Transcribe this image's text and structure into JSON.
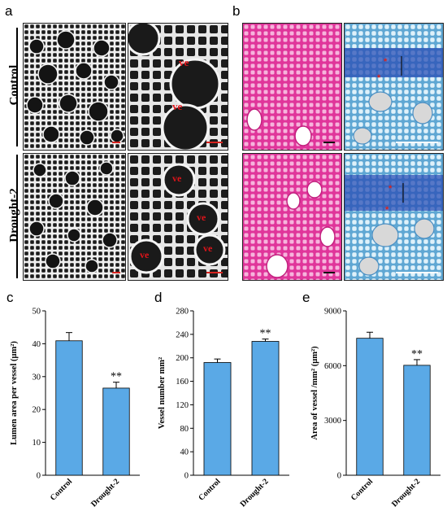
{
  "panel_letters": [
    "a",
    "b",
    "c",
    "d",
    "e"
  ],
  "rows": {
    "control_label": "Control",
    "drought_label": "Drought-2"
  },
  "vessel_label": "ve",
  "colors": {
    "sem_bg": "#1e1e1e",
    "sem_wall": "#e8e8e8",
    "safranin_bg": "#e0359a",
    "safranin_cell": "#f6b4dc",
    "astra_blue": "#9fd2ea",
    "astra_dark": "#2a4fb5",
    "bar": "#5aa9e6",
    "scale_red": "#d8231e",
    "scale_white": "#ffffff",
    "vessel_text": "#e0141a"
  },
  "chart_data": [
    {
      "type": "bar",
      "categories": [
        "Control",
        "Drought-2"
      ],
      "values": [
        40.9,
        26.5
      ],
      "errors": [
        2.5,
        1.8
      ],
      "significance": [
        "",
        "**"
      ],
      "ylabel": "Lumen area per vessel (μm²)",
      "ylim": [
        0,
        50
      ],
      "yticks": [
        0,
        10,
        20,
        30,
        40,
        50
      ]
    },
    {
      "type": "bar",
      "categories": [
        "Control",
        "Drought-2"
      ],
      "values": [
        192,
        228
      ],
      "errors": [
        6,
        4
      ],
      "significance": [
        "",
        "**"
      ],
      "ylabel": "Vessel number mm²",
      "ylim": [
        0,
        280
      ],
      "yticks": [
        0,
        40,
        80,
        120,
        160,
        200,
        240,
        280
      ]
    },
    {
      "type": "bar",
      "categories": [
        "Control",
        "Drought-2"
      ],
      "values": [
        7500,
        6020
      ],
      "errors": [
        330,
        310
      ],
      "significance": [
        "",
        "**"
      ],
      "ylabel": "Area of vessel /mm² (μm²)",
      "ylim": [
        0,
        9000
      ],
      "yticks": [
        0,
        3000,
        6000,
        9000
      ]
    }
  ]
}
